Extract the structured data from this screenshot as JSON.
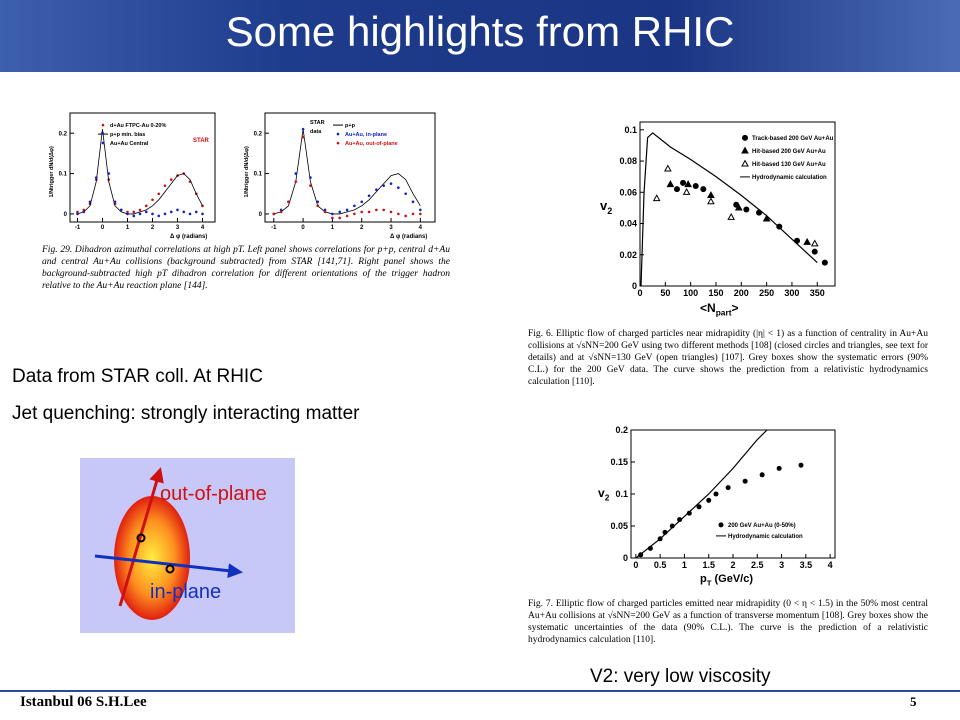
{
  "header": {
    "title": "Some highlights from RHIC"
  },
  "texts": [
    "Data from STAR coll. At RHIC",
    "Jet quenching:  strongly interacting matter",
    "V2:  very low viscosity"
  ],
  "diagram": {
    "labels": [
      "out-of-plane",
      "in-plane"
    ]
  },
  "footer": {
    "left": "Istanbul 06  S.H.Lee",
    "page": "5"
  },
  "figures": {
    "fig29": {
      "caption": "Fig. 29.  Dihadron azimuthal correlations at high pT. Left panel shows correlations for p+p, central d+Au and central Au+Au collisions (background subtracted) from STAR [141,71]. Right panel shows the background-subtracted high pT dihadron correlation for different orientations of the trigger hadron relative to the Au+Au reaction plane [144].",
      "charts": [
        {
          "type": "scatter",
          "logo": "STAR",
          "xlim": [
            -1.3,
            4.5
          ],
          "ylim": [
            -0.02,
            0.25
          ],
          "xticks": [
            -1,
            0,
            1,
            2,
            3,
            4
          ],
          "yticks": [
            0,
            0.1,
            0.2
          ],
          "x_label": "Δ φ (radians)",
          "y_label": "1/Ntrigger dN/d(Δφ)",
          "x": [
            -1,
            -0.75,
            -0.5,
            -0.25,
            0,
            0.25,
            0.5,
            0.75,
            1,
            1.25,
            1.5,
            1.75,
            2,
            2.25,
            2.5,
            2.75,
            3,
            3.25,
            3.5,
            3.75,
            4
          ],
          "series": [
            {
              "name": "d+Au FTPC-Au 0-20%",
              "color": "#d01010",
              "marker": "circle",
              "values": [
                0.005,
                0.01,
                0.025,
                0.085,
                0.2,
                0.085,
                0.025,
                0.01,
                0.005,
                0.005,
                0.01,
                0.02,
                0.035,
                0.05,
                0.07,
                0.085,
                0.095,
                0.1,
                0.08,
                0.05,
                0.02
              ]
            },
            {
              "name": "p+p min. bias",
              "color": "#000000",
              "marker": "line",
              "values": [
                0,
                0.005,
                0.02,
                0.08,
                0.21,
                0.08,
                0.02,
                0.005,
                0,
                0,
                0.005,
                0.01,
                0.02,
                0.035,
                0.055,
                0.075,
                0.095,
                0.1,
                0.085,
                0.05,
                0.02
              ]
            },
            {
              "name": "Au+Au Central",
              "color": "#1020d0",
              "marker": "star",
              "values": [
                0,
                0.005,
                0.03,
                0.09,
                0.2,
                0.1,
                0.03,
                0.01,
                0,
                -0.005,
                0,
                0.005,
                0,
                -0.005,
                0,
                0.005,
                0.01,
                0.005,
                0,
                0.005,
                0
              ]
            }
          ]
        },
        {
          "type": "scatter",
          "legend_header": [
            "STAR",
            "data"
          ],
          "xlim": [
            -1.3,
            4.5
          ],
          "ylim": [
            -0.02,
            0.25
          ],
          "xticks": [
            -1,
            0,
            1,
            2,
            3,
            4
          ],
          "yticks": [
            0,
            0.1,
            0.2
          ],
          "x_label": "Δ φ (radians)",
          "y_label": "1/Ntrigger dN/d(Δφ)",
          "x": [
            -1,
            -0.75,
            -0.5,
            -0.25,
            0,
            0.25,
            0.5,
            0.75,
            1,
            1.25,
            1.5,
            1.75,
            2,
            2.25,
            2.5,
            2.75,
            3,
            3.25,
            3.5,
            3.75,
            4
          ],
          "series": [
            {
              "name": "p+p",
              "color": "#000000",
              "marker": "line",
              "values": [
                0,
                0.005,
                0.02,
                0.08,
                0.21,
                0.08,
                0.02,
                0.005,
                0,
                0,
                0.005,
                0.01,
                0.02,
                0.035,
                0.055,
                0.075,
                0.095,
                0.1,
                0.085,
                0.05,
                0.02
              ]
            },
            {
              "name": "Au+Au, in-plane",
              "color": "#1020d0",
              "marker": "star",
              "values": [
                0,
                0.01,
                0.03,
                0.1,
                0.21,
                0.09,
                0.03,
                0.01,
                0,
                0.005,
                0.01,
                0.02,
                0.03,
                0.045,
                0.06,
                0.07,
                0.075,
                0.065,
                0.05,
                0.03,
                0.01
              ]
            },
            {
              "name": "Au+Au, out-of-plane",
              "color": "#d01010",
              "marker": "circle",
              "values": [
                0,
                0.005,
                0.03,
                0.08,
                0.19,
                0.07,
                0.02,
                0.005,
                -0.01,
                -0.01,
                -0.005,
                0,
                0.005,
                0.005,
                0.01,
                0.01,
                0.005,
                0,
                -0.005,
                0,
                0
              ]
            }
          ]
        }
      ]
    },
    "fig6": {
      "caption": "Fig. 6.  Elliptic flow of charged particles near midrapidity (|η| < 1) as a function of centrality in Au+Au collisions at √sNN=200 GeV using two different methods [108] (closed circles and triangles, see text for details) and at √sNN=130 GeV (open triangles) [107]. Grey boxes show the systematic errors (90% C.L.) for the 200 GeV data. The curve shows the prediction from a relativistic hydrodynamics calculation [110].",
      "chart": {
        "type": "scatter",
        "xlim": [
          0,
          385
        ],
        "ylim": [
          0,
          0.105
        ],
        "xticks": [
          0,
          50,
          100,
          150,
          200,
          250,
          300,
          350
        ],
        "yticks": [
          0,
          0.02,
          0.04,
          0.06,
          0.08,
          0.1
        ],
        "y_label": {
          "main": "v",
          "sub": "2"
        },
        "x_label": {
          "main": "<N",
          "sub": "part",
          "end": ">"
        },
        "series": [
          {
            "name": "Track-based 200 GeV Au+Au",
            "color": "#000000",
            "marker": "circle",
            "x": [
              73,
              85,
              110,
              125,
              190,
              210,
              235,
              275,
              310,
              345,
              365
            ],
            "values": [
              0.062,
              0.066,
              0.064,
              0.062,
              0.052,
              0.049,
              0.047,
              0.038,
              0.029,
              0.022,
              0.015
            ]
          },
          {
            "name": "Hit-based 200 GeV Au+Au",
            "color": "#000000",
            "marker": "triangle",
            "x": [
              60,
              95,
              140,
              195,
              250,
              330
            ],
            "values": [
              0.065,
              0.065,
              0.058,
              0.05,
              0.043,
              0.028
            ]
          },
          {
            "name": "Hit-based 130 GeV Au+Au",
            "color": "#000000",
            "marker": "open-triangle",
            "x": [
              33,
              55,
              92,
              140,
              180,
              345
            ],
            "values": [
              0.056,
              0.075,
              0.06,
              0.054,
              0.044,
              0.027
            ]
          },
          {
            "name": "Hydrodynamic calculation",
            "color": "#000000",
            "marker": "line",
            "x": [
              2,
              8,
              15,
              25,
              60,
              100,
              150,
              200,
              250,
              300,
              350
            ],
            "values": [
              0,
              0.06,
              0.095,
              0.098,
              0.089,
              0.081,
              0.07,
              0.058,
              0.045,
              0.03,
              0.015
            ]
          }
        ]
      }
    },
    "fig7": {
      "caption": "Fig. 7.  Elliptic flow of charged particles emitted near midrapidity (0 < η < 1.5) in the 50% most central Au+Au collisions at √sNN=200 GeV as a function of transverse momentum [108]. Grey boxes show the systematic uncertainties of the data (90% C.L.). The curve is the prediction of a relativistic hydrodynamics calculation [110].",
      "chart": {
        "type": "scatter",
        "xlim": [
          -0.1,
          4.1
        ],
        "ylim": [
          0,
          0.2
        ],
        "xticks": [
          0,
          0.5,
          1,
          1.5,
          2,
          2.5,
          3,
          3.5,
          4
        ],
        "yticks": [
          0,
          0.05,
          0.1,
          0.15,
          0.2
        ],
        "y_label": {
          "main": "v",
          "sub": "2"
        },
        "x_label": {
          "main": "p",
          "sub": "T",
          "end": " (GeV/c)"
        },
        "series": [
          {
            "name": "200 GeV Au+Au (0-50%)",
            "color": "#000000",
            "marker": "circle",
            "x": [
              0.1,
              0.3,
              0.5,
              0.6,
              0.75,
              0.9,
              1.1,
              1.3,
              1.5,
              1.65,
              1.9,
              2.25,
              2.6,
              2.95,
              3.4
            ],
            "values": [
              0.005,
              0.015,
              0.03,
              0.04,
              0.05,
              0.06,
              0.07,
              0.08,
              0.09,
              0.1,
              0.11,
              0.12,
              0.13,
              0.14,
              0.145
            ]
          },
          {
            "name": "Hydrodynamic calculation",
            "color": "#000000",
            "marker": "line",
            "x": [
              0,
              0.5,
              1,
              1.5,
              2,
              2.5,
              2.7
            ],
            "values": [
              0,
              0.03,
              0.065,
              0.1,
              0.14,
              0.185,
              0.2
            ]
          }
        ]
      }
    }
  }
}
